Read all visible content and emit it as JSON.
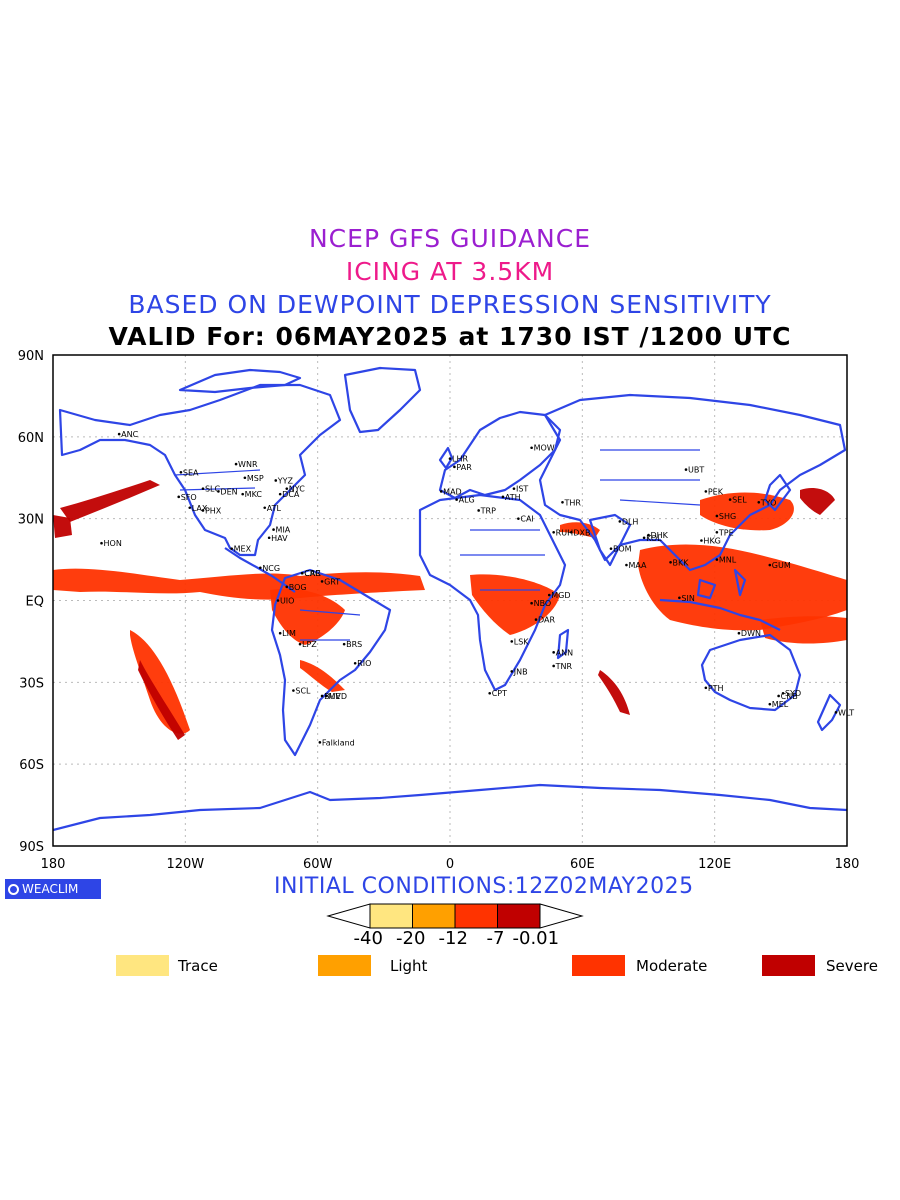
{
  "titles": {
    "line1": "NCEP GFS GUIDANCE",
    "line2": "ICING AT 3.5KM",
    "line3": "BASED ON DEWPOINT DEPRESSION SENSITIVITY",
    "line4": "VALID For: 06MAY2025 at 1730 IST /1200 UTC",
    "colors": {
      "line1": "#9b1fd0",
      "line2": "#ee1a8a",
      "line3": "#2e45e6",
      "line4": "#000000"
    }
  },
  "axes": {
    "lat_ticks": [
      "90N",
      "60N",
      "30N",
      "EQ",
      "30S",
      "60S",
      "90S"
    ],
    "lon_ticks": [
      "180",
      "120W",
      "60W",
      "0",
      "60E",
      "120E",
      "180"
    ]
  },
  "logo": "WEACLIM",
  "initial_conditions": "INITIAL CONDITIONS:12Z02MAY2025",
  "colorbar": {
    "ticks": [
      "-40",
      "-20",
      "-12",
      "-7",
      "-0.01"
    ],
    "colors": [
      "#ffe680",
      "#ffa000",
      "#ff3300",
      "#c00000"
    ]
  },
  "legend": [
    {
      "label": "Trace",
      "color": "#ffe680"
    },
    {
      "label": "Light",
      "color": "#ffa000"
    },
    {
      "label": "Moderate",
      "color": "#ff3300"
    },
    {
      "label": "Severe",
      "color": "#c00000"
    }
  ],
  "cities": [
    "ANC",
    "HON",
    "SEA",
    "WNR",
    "MSP",
    "DEN",
    "MKC",
    "PHX",
    "LAX",
    "SFO",
    "SLC",
    "YYZ",
    "NYC",
    "DCA",
    "ATL",
    "MIA",
    "HAV",
    "MEX",
    "NCG",
    "CRC",
    "BOG",
    "UIO",
    "LIM",
    "LPZ",
    "BRS",
    "SCL",
    "BUE",
    "RIO",
    "MVD",
    "CAR",
    "GRT",
    "LHR",
    "PAR",
    "MAD",
    "ALG",
    "TRP",
    "CAI",
    "RUH",
    "DXB",
    "THR",
    "MOW",
    "IST",
    "ATH",
    "NBO",
    "DAR",
    "JNB",
    "CPT",
    "LSK",
    "ANN",
    "MGD",
    "TNR",
    "DLH",
    "BOM",
    "MAA",
    "KOL",
    "BKK",
    "DHK",
    "SIN",
    "MNL",
    "HKG",
    "TPE",
    "SHG",
    "PEK",
    "SEL",
    "TYO",
    "UBT",
    "GUM",
    "DWN",
    "PTH",
    "SYD",
    "MEL",
    "CNB",
    "WLT",
    "Falkland"
  ]
}
